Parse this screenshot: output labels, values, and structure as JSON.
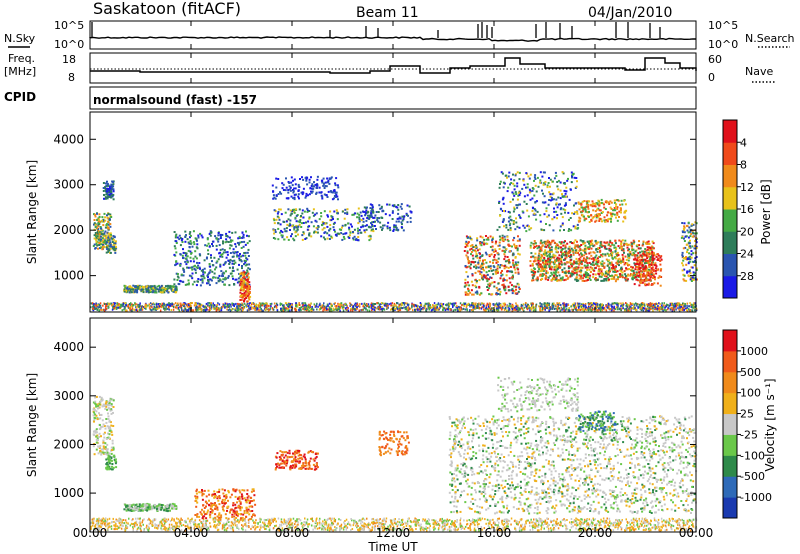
{
  "header": {
    "station": "Saskatoon (fitACF)",
    "beam": "Beam 11",
    "date": "04/Jan/2010"
  },
  "sky_panel": {
    "left_label": "N.Sky",
    "right_label": "N.Search",
    "ticks_left": [
      "10^5",
      "10^0"
    ],
    "ticks_right": [
      "10^5",
      "10^0"
    ]
  },
  "freq_panel": {
    "left_label_line1": "Freq.",
    "left_label_line2": "[MHz]",
    "right_label": "Nave",
    "ticks_left": [
      "18",
      "8"
    ],
    "ticks_right": [
      "60",
      "0"
    ]
  },
  "cpid": {
    "label": "CPID",
    "text": "normalsound (fast) -157"
  },
  "chart_data": [
    {
      "type": "heatmap",
      "name": "power",
      "ylabel": "Slant Range [km]",
      "yticks": [
        1000,
        2000,
        3000,
        4000
      ],
      "ylim": [
        200,
        4600
      ],
      "xlim": [
        0,
        24
      ],
      "colorbar_label": "Power [dB]",
      "colorbar_ticks": [
        "4",
        "8",
        "12",
        "16",
        "20",
        "24",
        "28"
      ],
      "colorbar_colors": [
        "#1a1ae6",
        "#2a55b0",
        "#2e7d5a",
        "#44aa44",
        "#e8c21a",
        "#f08a1a",
        "#f04a1a",
        "#e0101a"
      ]
    },
    {
      "type": "heatmap",
      "name": "velocity",
      "ylabel": "Slant Range [km]",
      "yticks": [
        1000,
        2000,
        3000,
        4000
      ],
      "ylim": [
        200,
        4600
      ],
      "xlim": [
        0,
        24
      ],
      "colorbar_label": "Velocity [m s⁻¹]",
      "colorbar_ticks": [
        "1000",
        "500",
        "100",
        "25",
        "-25",
        "-100",
        "-500",
        "-1000"
      ],
      "colorbar_colors": [
        "#1a3ab0",
        "#2e6ab8",
        "#2e8a4a",
        "#6ac84a",
        "#c8c8c8",
        "#f0b01a",
        "#f08a1a",
        "#f05a1a",
        "#e0101a"
      ]
    }
  ],
  "xaxis": {
    "label": "Time UT",
    "ticks": [
      "00:00",
      "04:00",
      "08:00",
      "12:00",
      "16:00",
      "20:00",
      "00:00"
    ]
  }
}
